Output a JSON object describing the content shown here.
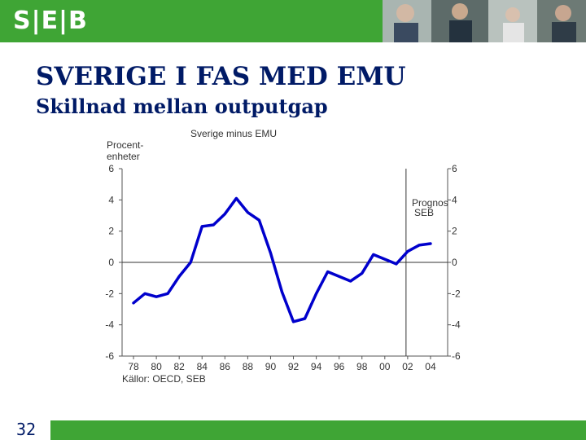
{
  "header": {
    "logo_text": "S|E|B"
  },
  "slide": {
    "title": "SVERIGE I FAS MED EMU",
    "subtitle": "Skillnad mellan outputgap",
    "page_number": "32"
  },
  "colors": {
    "brand_green": "#3fa535",
    "title_blue": "#001a66",
    "line_blue": "#0000cc"
  },
  "chart_data": {
    "type": "line",
    "title": "Sverige minus EMU",
    "ylabel_line1": "Procent-",
    "ylabel_line2": "enheter",
    "annotation_line1": "Prognos",
    "annotation_line2": "SEB",
    "source": "Källor: OECD, SEB",
    "ylim": [
      -6,
      6
    ],
    "y_ticks": [
      "6",
      "4",
      "2",
      "0",
      "-2",
      "-4",
      "-6"
    ],
    "x_tick_labels": [
      "78",
      "80",
      "82",
      "84",
      "86",
      "88",
      "90",
      "92",
      "94",
      "96",
      "98",
      "00",
      "02",
      "04"
    ],
    "forecast_start": 2002,
    "series": [
      {
        "x": [
          1978,
          1979,
          1980,
          1981,
          1982,
          1983,
          1984,
          1985,
          1986,
          1987,
          1988,
          1989,
          1990,
          1991,
          1992,
          1993,
          1994,
          1995,
          1996,
          1997,
          1998,
          1999,
          2000,
          2001,
          2002,
          2003,
          2004
        ],
        "y": [
          -2.6,
          -2.0,
          -2.2,
          -2.0,
          -0.9,
          0.0,
          2.3,
          2.4,
          3.1,
          4.1,
          3.2,
          2.7,
          0.6,
          -1.9,
          -3.8,
          -3.6,
          -2.0,
          -0.6,
          -0.9,
          -1.2,
          -0.7,
          0.5,
          0.2,
          -0.1,
          0.7,
          1.1,
          1.2
        ]
      }
    ]
  }
}
